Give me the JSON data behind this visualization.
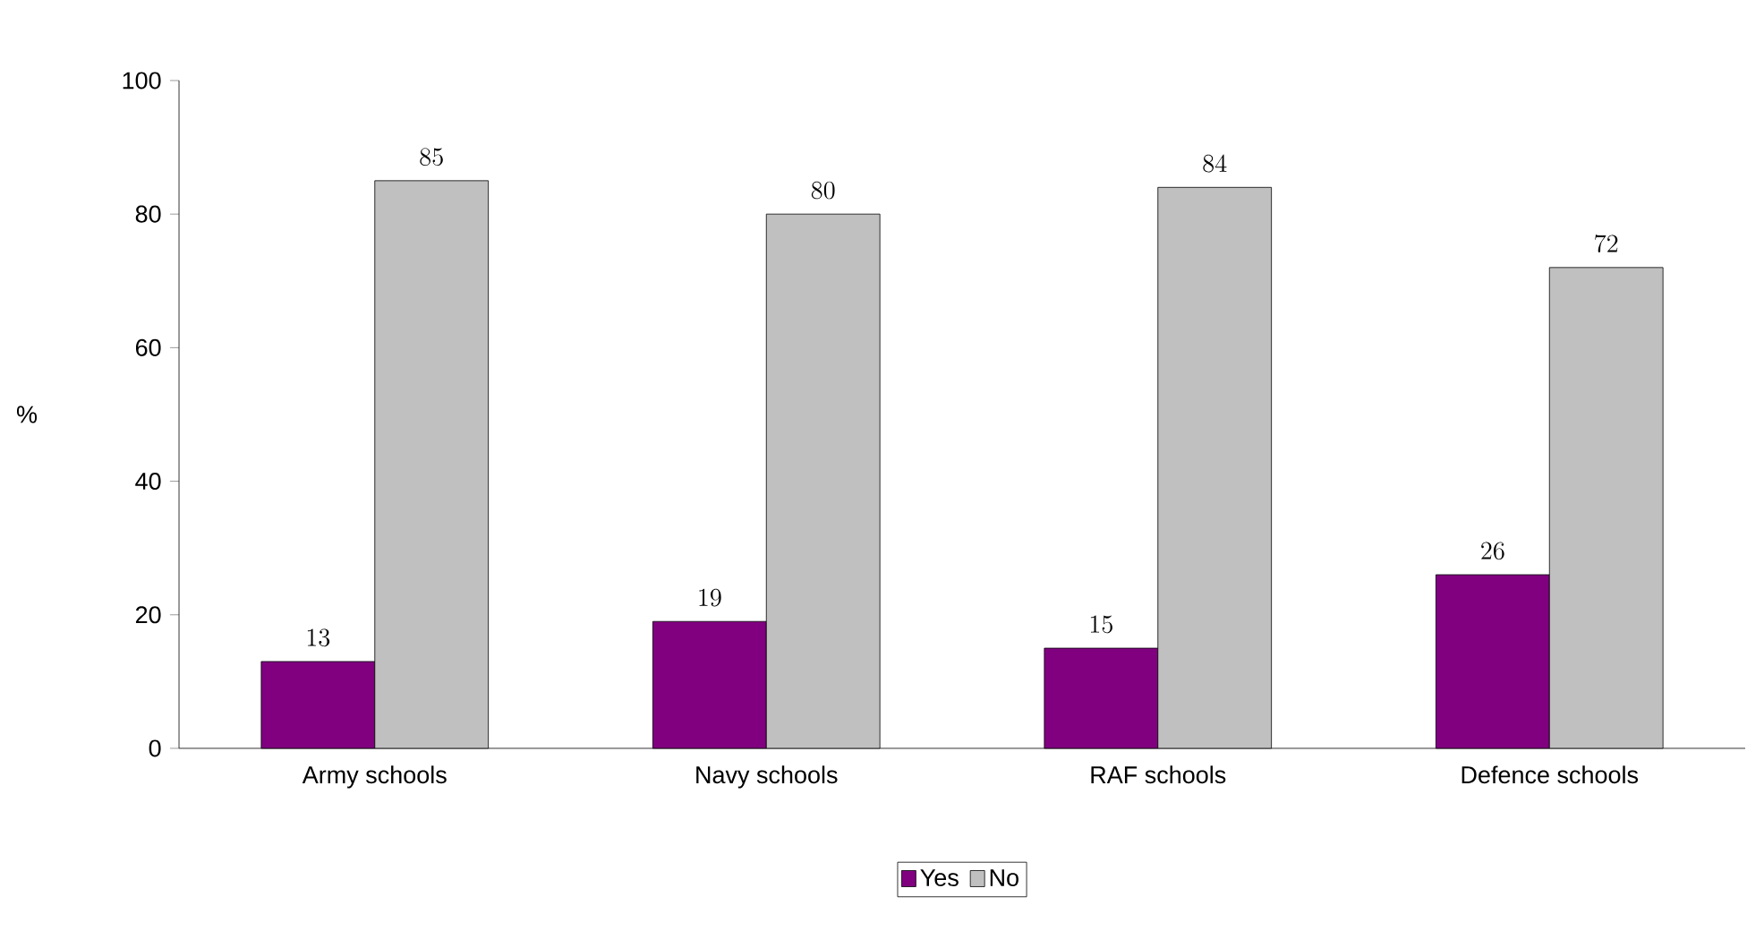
{
  "chart_data": {
    "type": "bar",
    "ylabel": "%",
    "categories": [
      "Army schools",
      "Navy schools",
      "RAF schools",
      "Defence schools"
    ],
    "series": [
      {
        "name": "Yes",
        "color": "#800080",
        "values": [
          13,
          19,
          15,
          26
        ]
      },
      {
        "name": "No",
        "color": "#c0c0c0",
        "values": [
          85,
          80,
          84,
          72
        ]
      }
    ],
    "ylim": [
      0,
      100
    ],
    "yticks": [
      0,
      20,
      40,
      60,
      80,
      100
    ],
    "data_labels": true,
    "grid": false,
    "legend": "bottom"
  }
}
